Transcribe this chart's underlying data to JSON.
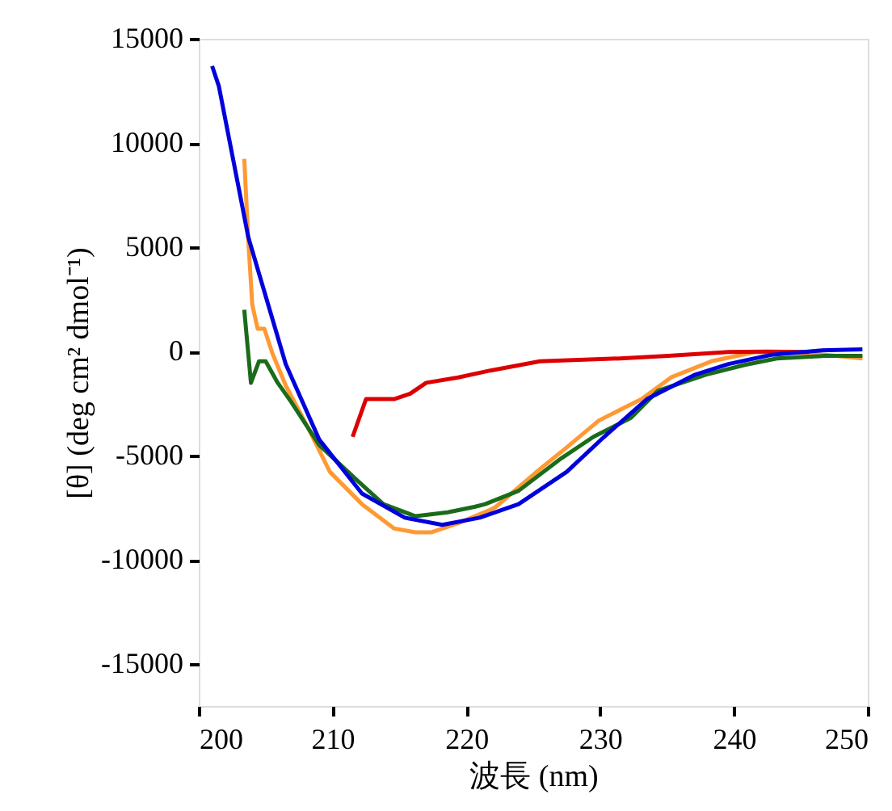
{
  "chart_data": {
    "type": "line",
    "xlabel": "波長 (nm)",
    "ylabel": "[θ] (deg cm² dmol⁻¹)",
    "xlim": [
      200,
      250
    ],
    "xticks": [
      200,
      210,
      220,
      230,
      240,
      250
    ],
    "ylim": [
      -17000,
      15000
    ],
    "yticks": [
      -15000,
      -10000,
      -5000,
      0,
      5000,
      10000,
      15000
    ],
    "grid": false,
    "marker": "none",
    "line_style": "solid",
    "series": [
      {
        "color": "#ff9933",
        "x": [
          203.4,
          203.7,
          204.0,
          204.4,
          204.9,
          205.5,
          206.5,
          208.2,
          209.8,
          212.2,
          214.6,
          216.2,
          217.4,
          219.4,
          221.8,
          222.2,
          225.5,
          227.5,
          229.9,
          233.1,
          235.3,
          238.3,
          241.6,
          245.6,
          249.6
        ],
        "values": [
          9240,
          5360,
          2250,
          1090,
          1090,
          -80,
          -1630,
          -3700,
          -5770,
          -7320,
          -8490,
          -8670,
          -8670,
          -8230,
          -7590,
          -7450,
          -5640,
          -4600,
          -3310,
          -2280,
          -1240,
          -470,
          -20,
          -80,
          -330
        ]
      },
      {
        "color": "#1a6b1a",
        "x": [
          203.4,
          203.9,
          204.5,
          205.0,
          205.9,
          206.9,
          209.0,
          211.8,
          213.8,
          216.2,
          218.6,
          220.6,
          221.4,
          223.9,
          227.1,
          229.5,
          232.3,
          234.3,
          237.9,
          240.8,
          243.2,
          246.8,
          249.6
        ],
        "values": [
          2000,
          -1500,
          -470,
          -470,
          -1500,
          -2410,
          -4480,
          -6160,
          -7320,
          -7900,
          -7710,
          -7450,
          -7320,
          -6680,
          -5120,
          -4090,
          -3180,
          -1890,
          -1110,
          -640,
          -330,
          -210,
          -210
        ]
      },
      {
        "color": "#dd0000",
        "x": [
          211.5,
          212.5,
          213.6,
          214.6,
          215.8,
          217.0,
          219.4,
          221.8,
          225.5,
          231.5,
          235.1,
          239.6,
          242.4,
          245.6
        ],
        "values": [
          -4090,
          -2280,
          -2280,
          -2280,
          -2020,
          -1500,
          -1240,
          -910,
          -470,
          -330,
          -210,
          -20,
          0,
          -20
        ]
      },
      {
        "color": "#0000dd",
        "x": [
          201.0,
          201.5,
          203.7,
          206.5,
          209.0,
          212.2,
          215.4,
          218.2,
          221.0,
          223.9,
          227.5,
          230.3,
          233.5,
          237.1,
          239.6,
          242.8,
          246.4,
          249.6
        ],
        "values": [
          13690,
          12730,
          5490,
          -600,
          -4220,
          -6810,
          -7970,
          -8310,
          -7970,
          -7320,
          -5770,
          -4090,
          -2280,
          -1110,
          -600,
          -160,
          50,
          100
        ]
      }
    ]
  }
}
